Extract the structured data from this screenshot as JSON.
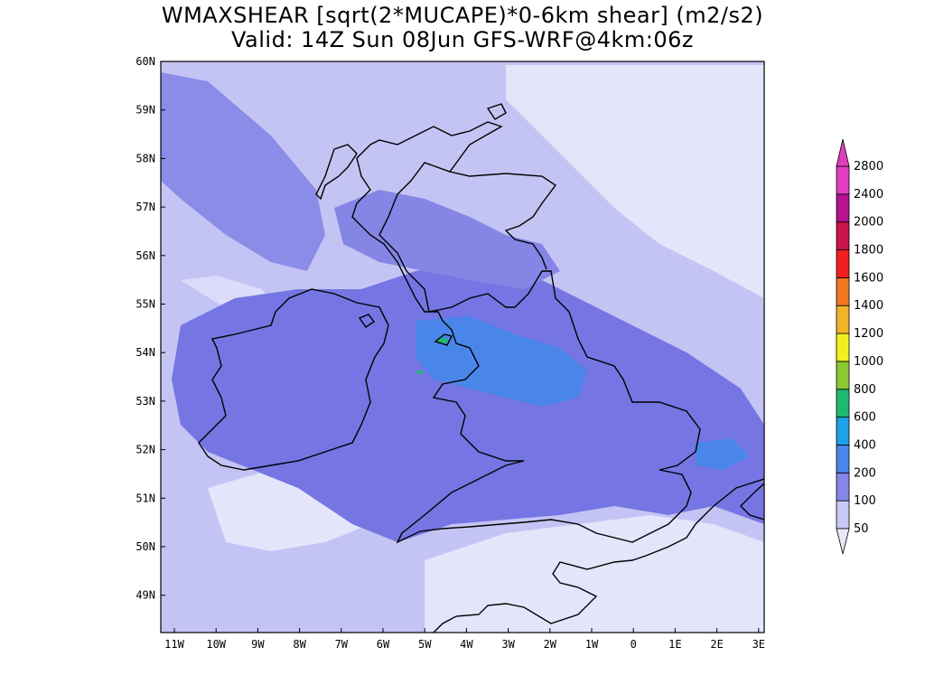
{
  "title": {
    "line1": "WMAXSHEAR [sqrt(2*MUCAPE)*0-6km shear] (m2/s2)",
    "line2": "Valid: 14Z Sun 08Jun GFS-WRF@4km:06z"
  },
  "map": {
    "lat_labels": [
      "60N",
      "59N",
      "58N",
      "57N",
      "56N",
      "55N",
      "54N",
      "53N",
      "52N",
      "51N",
      "50N",
      "49N"
    ],
    "lon_labels": [
      "11W",
      "10W",
      "9W",
      "8W",
      "7W",
      "6W",
      "5W",
      "4W",
      "3W",
      "2W",
      "1W",
      "0",
      "1E",
      "2E",
      "3E"
    ],
    "colors": {
      "very_light": "#e4e4fb",
      "light": "#c0c0f6",
      "medium": "#8b8be8",
      "dark": "#6a6ae0",
      "blue": "#3f7ee8",
      "green": "#20b870",
      "coast": "#000000"
    }
  },
  "colorbar": {
    "labels": [
      "50",
      "100",
      "200",
      "400",
      "600",
      "800",
      "1000",
      "1200",
      "1400",
      "1600",
      "1800",
      "2000",
      "2400",
      "2800"
    ],
    "colors": [
      "#e8e8fc",
      "#c8c8f6",
      "#8585e8",
      "#4a86ea",
      "#1ea0e6",
      "#20b870",
      "#8cc832",
      "#f0f020",
      "#f0b428",
      "#f07820",
      "#f02020",
      "#c81448",
      "#b41490",
      "#e040c0"
    ]
  }
}
